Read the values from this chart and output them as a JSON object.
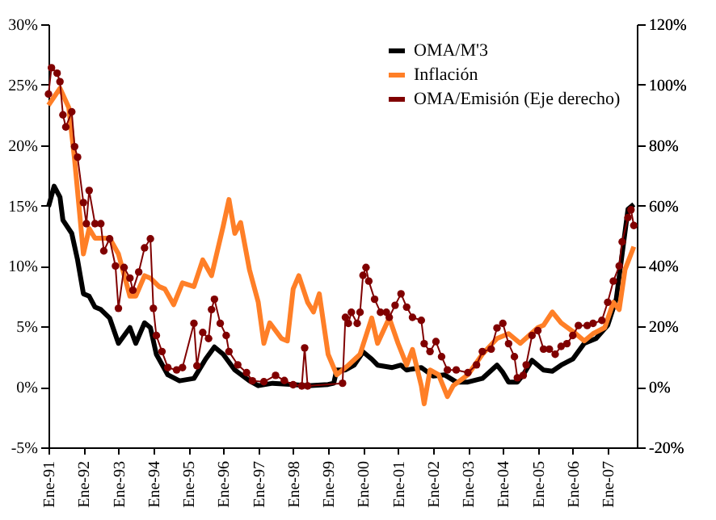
{
  "chart_data": {
    "type": "line",
    "ylim": [
      -5,
      30
    ],
    "yticks": [
      {
        "value": -5,
        "label": "-5%"
      },
      {
        "value": 0,
        "label": "0%"
      },
      {
        "value": 5,
        "label": "5%"
      },
      {
        "value": 10,
        "label": "10%"
      },
      {
        "value": 15,
        "label": "15%"
      },
      {
        "value": 20,
        "label": "20%"
      },
      {
        "value": 25,
        "label": "25%"
      },
      {
        "value": 30,
        "label": "30%"
      }
    ],
    "y2lim": [
      -20,
      120
    ],
    "y2ticks": [
      {
        "value": -20,
        "label": "-20%"
      },
      {
        "value": 0,
        "label": "0%"
      },
      {
        "value": 20,
        "label": "20%"
      },
      {
        "value": 40,
        "label": "40%"
      },
      {
        "value": 60,
        "label": "60%"
      },
      {
        "value": 80,
        "label": "80%"
      },
      {
        "value": 100,
        "label": "100%"
      },
      {
        "value": 120,
        "label": "120%"
      }
    ],
    "xlim": [
      "1991-01",
      "2007-11"
    ],
    "xticks": [
      {
        "value": "1991-01",
        "label": "Ene-91"
      },
      {
        "value": "1992-01",
        "label": "Ene-92"
      },
      {
        "value": "1993-01",
        "label": "Ene-93"
      },
      {
        "value": "1994-01",
        "label": "Ene-94"
      },
      {
        "value": "1995-01",
        "label": "Ene-95"
      },
      {
        "value": "1996-01",
        "label": "Ene-96"
      },
      {
        "value": "1997-01",
        "label": "Ene-97"
      },
      {
        "value": "1998-01",
        "label": "Ene-98"
      },
      {
        "value": "1999-01",
        "label": "Ene-99"
      },
      {
        "value": "2000-01",
        "label": "Ene-00"
      },
      {
        "value": "2001-01",
        "label": "Ene-01"
      },
      {
        "value": "2002-01",
        "label": "Ene-02"
      },
      {
        "value": "2003-01",
        "label": "Ene-03"
      },
      {
        "value": "2004-01",
        "label": "Ene-04"
      },
      {
        "value": "2005-01",
        "label": "Ene-05"
      },
      {
        "value": "2006-01",
        "label": "Ene-06"
      },
      {
        "value": "2007-01",
        "label": "Ene-07"
      }
    ],
    "legend": "top right",
    "grid": false,
    "series": [
      {
        "name": "OMA/M'3",
        "color": "#000000",
        "x": [
          "1991-01",
          "1991-03",
          "1991-05",
          "1991-06",
          "1991-09",
          "1991-11",
          "1992-01",
          "1992-03",
          "1992-05",
          "1992-07",
          "1992-10",
          "1993-01",
          "1993-05",
          "1993-07",
          "1993-10",
          "1993-12",
          "1994-02",
          "1994-06",
          "1994-10",
          "1995-03",
          "1995-07",
          "1995-10",
          "1996-01",
          "1996-05",
          "1996-10",
          "1997-01",
          "1997-06",
          "1998-01",
          "1998-06",
          "1999-01",
          "1999-03",
          "1999-04",
          "1999-07",
          "1999-10",
          "2000-01",
          "2000-04",
          "2000-06",
          "2000-11",
          "2001-02",
          "2001-04",
          "2001-09",
          "2002-01",
          "2002-05",
          "2002-09",
          "2003-01",
          "2003-06",
          "2003-11",
          "2004-01",
          "2004-03",
          "2004-06",
          "2004-08",
          "2004-11",
          "2005-03",
          "2005-06",
          "2005-09",
          "2006-01",
          "2006-05",
          "2006-09",
          "2007-01",
          "2007-04",
          "2007-06",
          "2007-08",
          "2007-10"
        ],
        "values": [
          14.9,
          16.6,
          15.7,
          13.8,
          12.7,
          10.5,
          7.7,
          7.5,
          6.6,
          6.4,
          5.7,
          3.6,
          4.9,
          3.6,
          5.3,
          4.9,
          2.7,
          1.0,
          0.5,
          0.7,
          2.3,
          3.3,
          2.7,
          1.4,
          0.5,
          0.1,
          0.3,
          0.2,
          0.1,
          0.2,
          0.3,
          1.4,
          1.4,
          1.8,
          2.9,
          2.3,
          1.8,
          1.6,
          1.8,
          1.4,
          1.6,
          0.9,
          1.0,
          0.4,
          0.4,
          0.7,
          1.8,
          1.2,
          0.4,
          0.4,
          1.0,
          2.2,
          1.4,
          1.3,
          1.8,
          2.3,
          3.6,
          4.0,
          5.1,
          7.3,
          11.0,
          14.7,
          15.1
        ]
      },
      {
        "name": "Inflación",
        "color": "#ff7f27",
        "x": [
          "1991-01",
          "1991-05",
          "1991-08",
          "1991-10",
          "1992-01",
          "1992-03",
          "1992-05",
          "1992-10",
          "1993-01",
          "1993-05",
          "1993-07",
          "1993-10",
          "1993-12",
          "1994-03",
          "1994-05",
          "1994-08",
          "1994-11",
          "1995-03",
          "1995-06",
          "1995-09",
          "1996-01",
          "1996-03",
          "1996-05",
          "1996-07",
          "1996-10",
          "1997-01",
          "1997-03",
          "1997-05",
          "1997-09",
          "1997-11",
          "1998-01",
          "1998-03",
          "1998-06",
          "1998-08",
          "1998-10",
          "1999-01",
          "1999-04",
          "1999-08",
          "1999-12",
          "2000-04",
          "2000-06",
          "2000-10",
          "2001-01",
          "2001-04",
          "2001-06",
          "2001-09",
          "2001-10",
          "2001-12",
          "2002-03",
          "2002-06",
          "2002-08",
          "2003-01",
          "2003-06",
          "2003-11",
          "2004-03",
          "2004-07",
          "2005-01",
          "2005-03",
          "2005-06",
          "2005-09",
          "2006-02",
          "2006-05",
          "2006-08",
          "2006-12",
          "2007-03",
          "2007-05",
          "2007-07",
          "2007-10"
        ],
        "values": [
          23.3,
          24.7,
          23.1,
          18.8,
          11.0,
          13.1,
          12.3,
          12.3,
          11.0,
          7.5,
          7.5,
          9.2,
          9.0,
          8.3,
          8.1,
          6.8,
          8.6,
          8.3,
          10.5,
          9.2,
          13.3,
          15.5,
          12.7,
          13.6,
          9.7,
          7.0,
          3.6,
          5.3,
          4.0,
          3.8,
          8.1,
          9.2,
          7.0,
          6.2,
          7.7,
          2.7,
          1.0,
          1.8,
          2.7,
          5.7,
          3.6,
          5.7,
          3.6,
          1.8,
          3.1,
          0.1,
          -1.4,
          1.4,
          1.0,
          -0.8,
          0.1,
          1.0,
          2.7,
          4.0,
          4.4,
          3.6,
          4.9,
          5.1,
          6.2,
          5.3,
          4.4,
          3.8,
          4.4,
          4.9,
          7.0,
          6.4,
          9.7,
          11.6
        ]
      },
      {
        "name": "OMA/Emisión (Eje derecho)",
        "color": "#800000",
        "axis": "y2",
        "marker": "circle",
        "x": [
          "1991-01",
          "1991-02",
          "1991-04",
          "1991-05",
          "1991-06",
          "1991-07",
          "1991-09",
          "1991-10",
          "1991-11",
          "1992-01",
          "1992-02",
          "1992-03",
          "1992-05",
          "1992-07",
          "1992-08",
          "1992-10",
          "1992-12",
          "1993-01",
          "1993-03",
          "1993-05",
          "1993-06",
          "1993-08",
          "1993-10",
          "1993-12",
          "1994-01",
          "1994-02",
          "1994-04",
          "1994-06",
          "1994-09",
          "1994-11",
          "1995-03",
          "1995-04",
          "1995-06",
          "1995-08",
          "1995-09",
          "1995-10",
          "1995-12",
          "1996-02",
          "1996-03",
          "1996-06",
          "1996-09",
          "1996-11",
          "1997-03",
          "1997-07",
          "1997-10",
          "1998-01",
          "1998-04",
          "1998-05",
          "1998-06",
          "1999-06",
          "1999-07",
          "1999-08",
          "1999-09",
          "1999-11",
          "1999-12",
          "2000-01",
          "2000-02",
          "2000-03",
          "2000-05",
          "2000-07",
          "2000-09",
          "2000-10",
          "2000-12",
          "2001-02",
          "2001-04",
          "2001-06",
          "2001-09",
          "2001-10",
          "2001-12",
          "2002-02",
          "2002-04",
          "2002-06",
          "2002-09",
          "2003-01",
          "2003-04",
          "2003-06",
          "2003-09",
          "2003-11",
          "2004-01",
          "2004-03",
          "2004-05",
          "2004-06",
          "2004-08",
          "2004-09",
          "2004-11",
          "2005-01",
          "2005-03",
          "2005-05",
          "2005-07",
          "2005-09",
          "2005-11",
          "2006-01",
          "2006-03",
          "2006-06",
          "2006-08",
          "2006-11",
          "2007-01",
          "2007-03",
          "2007-05",
          "2007-06",
          "2007-08",
          "2007-09",
          "2007-10"
        ],
        "values": [
          96.9,
          105.6,
          103.8,
          101,
          90,
          86,
          91,
          79.5,
          76,
          61,
          54,
          65,
          54,
          54,
          45,
          49,
          40,
          26,
          39.5,
          36,
          32,
          38,
          46,
          49,
          26,
          17,
          11.7,
          6.4,
          5.6,
          6.4,
          21,
          7,
          18,
          16,
          25.6,
          29,
          21,
          17,
          11.7,
          7.3,
          4.7,
          2,
          1.7,
          3.8,
          2.1,
          0.7,
          0.3,
          12.9,
          0.3,
          1.2,
          23,
          21,
          24.7,
          21,
          24.7,
          36.9,
          39.5,
          35,
          29,
          24.7,
          24.7,
          23,
          27,
          30.8,
          26.4,
          23,
          22,
          14.3,
          11.7,
          15,
          10,
          5.6,
          5.6,
          4.7,
          7.3,
          11.7,
          12.5,
          19.5,
          21,
          14.3,
          10,
          3,
          3.8,
          7.3,
          17,
          18.6,
          12.5,
          12.5,
          10.8,
          13.4,
          14.3,
          17,
          20.3,
          20.3,
          21,
          22,
          28,
          35,
          40,
          48,
          56,
          58.6,
          53.4
        ]
      }
    ]
  }
}
